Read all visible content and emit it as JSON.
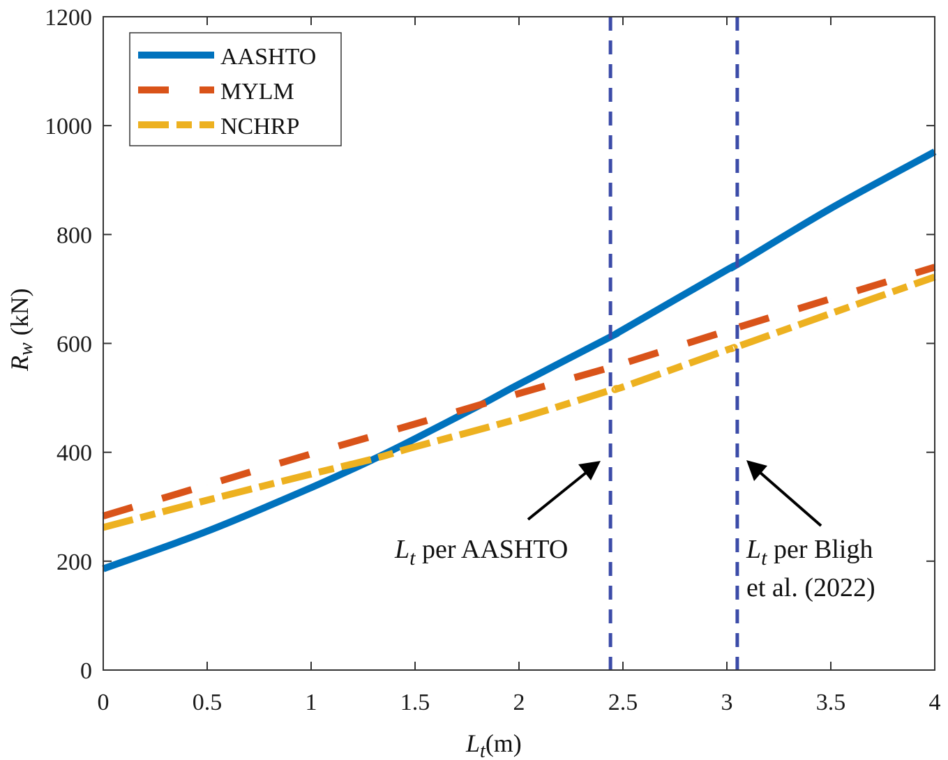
{
  "chart_data": {
    "type": "line",
    "title": "",
    "xlabel": "L_t(m)",
    "xlabel_main": "L",
    "xlabel_sub": "t",
    "xlabel_unit": "(m)",
    "ylabel": "R_w (kN)",
    "ylabel_main": "R",
    "ylabel_sub": "w",
    "ylabel_unit": "(kN)",
    "xlim": [
      0,
      4
    ],
    "ylim": [
      0,
      1200
    ],
    "xticks": [
      0,
      0.5,
      1,
      1.5,
      2,
      2.5,
      3,
      3.5,
      4
    ],
    "xtick_labels": [
      "0",
      "0.5",
      "1",
      "1.5",
      "2",
      "2.5",
      "3",
      "3.5",
      "4"
    ],
    "yticks": [
      0,
      200,
      400,
      600,
      800,
      1000,
      1200
    ],
    "ytick_labels": [
      "0",
      "200",
      "400",
      "600",
      "800",
      "1000",
      "1200"
    ],
    "grid": false,
    "legend_position": "top-left",
    "series": [
      {
        "name": "AASHTO",
        "style": "solid",
        "color": "#0072BD",
        "x": [
          0,
          0.5,
          1,
          1.31,
          1.5,
          1.82,
          2,
          2.44,
          2.5,
          3,
          3.05,
          3.5,
          4
        ],
        "y": [
          186,
          255,
          335,
          389,
          425,
          488,
          525,
          612,
          625,
          735,
          745,
          848,
          952
        ]
      },
      {
        "name": "MYLM",
        "style": "dashed",
        "color": "#D95319",
        "x": [
          0,
          0.5,
          1,
          1.5,
          1.82,
          2,
          2.44,
          2.5,
          3,
          3.05,
          3.5,
          4
        ],
        "y": [
          283,
          340,
          397,
          452,
          488,
          508,
          556,
          563,
          623,
          629,
          682,
          740
        ]
      },
      {
        "name": "NCHRP",
        "style": "dash-dot",
        "color": "#EDB120",
        "x": [
          0,
          0.5,
          1,
          1.31,
          1.5,
          2,
          2.44,
          2.5,
          3,
          3.05,
          3.5,
          4
        ],
        "y": [
          262,
          312,
          360,
          389,
          410,
          462,
          514,
          520,
          588,
          594,
          655,
          722
        ]
      }
    ],
    "vlines": [
      {
        "name": "Lt-AASHTO",
        "x": 2.44,
        "color": "#3B4BA8",
        "style": "dashed"
      },
      {
        "name": "Lt-Bligh",
        "x": 3.05,
        "color": "#3B4BA8",
        "style": "dashed"
      }
    ],
    "annotations": [
      {
        "main": "L",
        "sub": "t",
        "text": " per AASHTO",
        "line2": ""
      },
      {
        "main": "L",
        "sub": "t",
        "text": " per Bligh",
        "line2": "et al. (2022)"
      }
    ]
  }
}
